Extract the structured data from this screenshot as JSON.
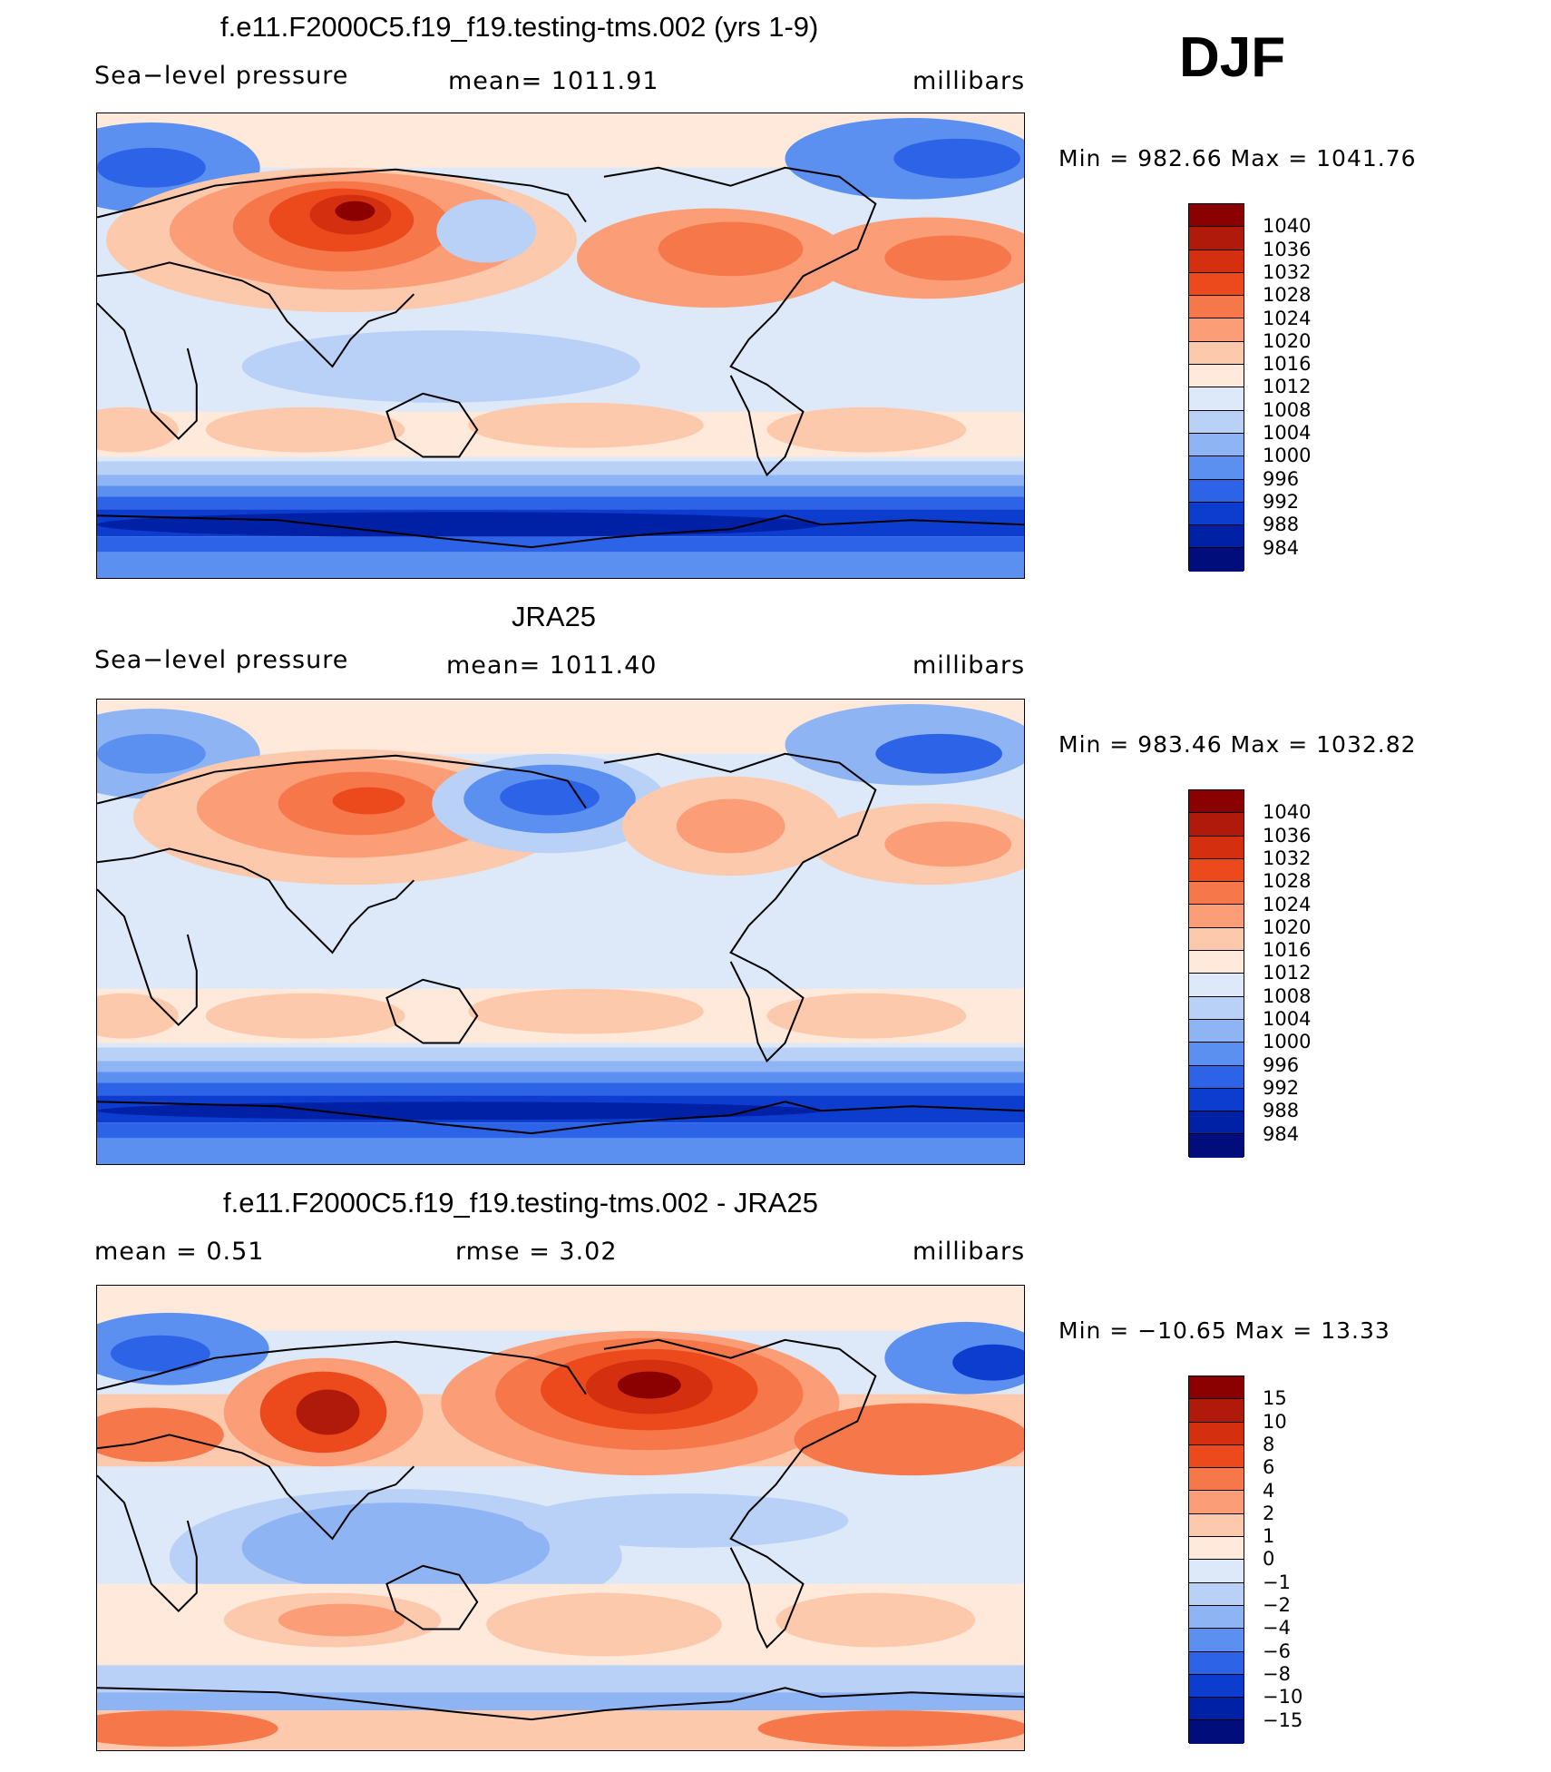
{
  "season": "DJF",
  "panels": [
    {
      "id": "model",
      "title": "f.e11.F2000C5.f19_f19.testing-tms.002 (yrs 1-9)",
      "left_label": "Sea−level pressure",
      "center_label": "mean=  1011.91",
      "right_label": "millibars",
      "minmax": "Min  =  982.66  Max  =  1041.76",
      "colorbar": {
        "labels": [
          "1040",
          "1036",
          "1032",
          "1028",
          "1024",
          "1020",
          "1016",
          "1012",
          "1008",
          "1004",
          "1000",
          "996",
          "992",
          "988",
          "984"
        ],
        "colors": [
          "#8b0000",
          "#b01a0a",
          "#d43010",
          "#ec4a1c",
          "#f6784a",
          "#fb9e78",
          "#fdc9ac",
          "#fee9da",
          "#dde9f8",
          "#b9d1f6",
          "#8fb4f3",
          "#5b8ff0",
          "#2d63e6",
          "#0c3dcf",
          "#0020a6",
          "#000d7a"
        ]
      },
      "map_field": "mslp_model"
    },
    {
      "id": "obs",
      "title": "JRA25",
      "left_label": "Sea−level pressure",
      "center_label": "mean=  1011.40",
      "right_label": "millibars",
      "minmax": "Min  =  983.46  Max  =  1032.82",
      "colorbar": {
        "labels": [
          "1040",
          "1036",
          "1032",
          "1028",
          "1024",
          "1020",
          "1016",
          "1012",
          "1008",
          "1004",
          "1000",
          "996",
          "992",
          "988",
          "984"
        ],
        "colors": [
          "#8b0000",
          "#b01a0a",
          "#d43010",
          "#ec4a1c",
          "#f6784a",
          "#fb9e78",
          "#fdc9ac",
          "#fee9da",
          "#dde9f8",
          "#b9d1f6",
          "#8fb4f3",
          "#5b8ff0",
          "#2d63e6",
          "#0c3dcf",
          "#0020a6",
          "#000d7a"
        ]
      },
      "map_field": "mslp_obs"
    },
    {
      "id": "diff",
      "title": "f.e11.F2000C5.f19_f19.testing-tms.002 - JRA25",
      "left_label": "mean =     0.51",
      "center_label": "rmse =     3.02",
      "right_label": "millibars",
      "minmax": "Min  =  −10.65  Max  =    13.33",
      "colorbar": {
        "labels": [
          "15",
          "10",
          "8",
          "6",
          "4",
          "2",
          "1",
          "0",
          "−1",
          "−2",
          "−4",
          "−6",
          "−8",
          "−10",
          "−15"
        ],
        "colors": [
          "#8b0000",
          "#b01a0a",
          "#d43010",
          "#ec4a1c",
          "#f6784a",
          "#fb9e78",
          "#fdc9ac",
          "#fee9da",
          "#dde9f8",
          "#b9d1f6",
          "#8fb4f3",
          "#5b8ff0",
          "#2d63e6",
          "#0c3dcf",
          "#0020a6",
          "#000d7a"
        ]
      },
      "map_field": "mslp_diff"
    }
  ]
}
